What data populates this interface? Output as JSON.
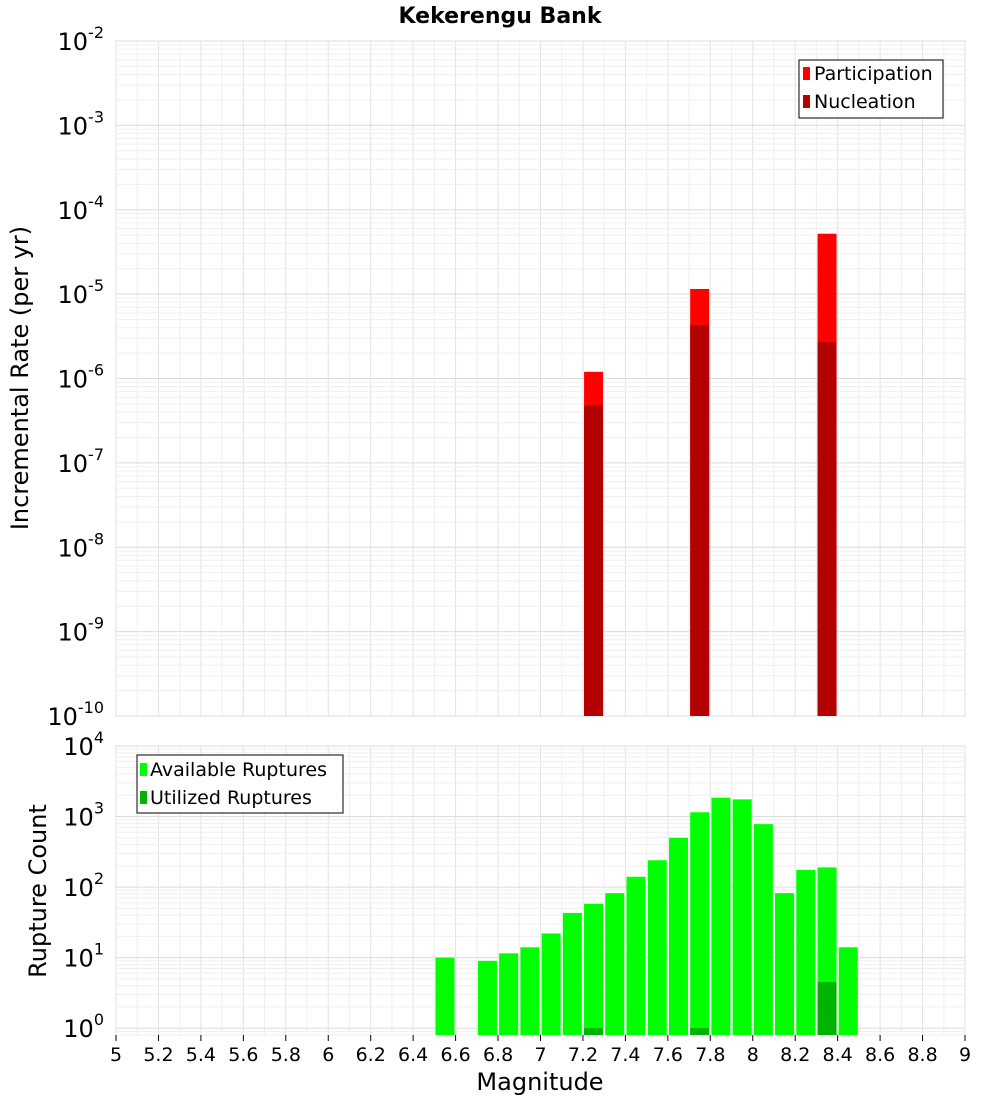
{
  "title": "Kekerengu Bank",
  "chart_data": [
    {
      "type": "bar",
      "ylabel": "Incremental Rate (per yr)",
      "yscale": "log",
      "ylim": [
        1e-10,
        0.01
      ],
      "y_tick_exponents": [
        -10,
        -9,
        -8,
        -7,
        -6,
        -5,
        -4,
        -3,
        -2
      ],
      "xlim": [
        5,
        9
      ],
      "grid": true,
      "legend_position": "top-right",
      "series": [
        {
          "name": "Participation",
          "color": "#ff0000",
          "points": [
            {
              "x": 7.25,
              "y": 1.2e-06
            },
            {
              "x": 7.75,
              "y": 1.15e-05
            },
            {
              "x": 8.35,
              "y": 5.2e-05
            }
          ]
        },
        {
          "name": "Nucleation",
          "color": "#b30000",
          "points": [
            {
              "x": 7.25,
              "y": 4.8e-07
            },
            {
              "x": 7.75,
              "y": 4.3e-06
            },
            {
              "x": 8.35,
              "y": 2.7e-06
            }
          ]
        }
      ]
    },
    {
      "type": "bar",
      "ylabel": "Rupture Count",
      "xlabel": "Magnitude",
      "yscale": "log",
      "ylim": [
        0.8,
        10000
      ],
      "y_tick_exponents": [
        0,
        1,
        2,
        3,
        4
      ],
      "xlim": [
        5,
        9
      ],
      "x_ticks": [
        "5",
        "5.2",
        "5.4",
        "5.6",
        "5.8",
        "6",
        "6.2",
        "6.4",
        "6.6",
        "6.8",
        "7",
        "7.2",
        "7.4",
        "7.6",
        "7.8",
        "8",
        "8.2",
        "8.4",
        "8.6",
        "8.8",
        "9"
      ],
      "grid": true,
      "legend_position": "top-left",
      "series": [
        {
          "name": "Available Ruptures",
          "color": "#00ff00",
          "points": [
            {
              "x": 6.55,
              "y": 10
            },
            {
              "x": 6.75,
              "y": 9
            },
            {
              "x": 6.85,
              "y": 11.5
            },
            {
              "x": 6.95,
              "y": 14
            },
            {
              "x": 7.05,
              "y": 22
            },
            {
              "x": 7.15,
              "y": 43
            },
            {
              "x": 7.25,
              "y": 58
            },
            {
              "x": 7.35,
              "y": 82
            },
            {
              "x": 7.45,
              "y": 140
            },
            {
              "x": 7.55,
              "y": 240
            },
            {
              "x": 7.65,
              "y": 500
            },
            {
              "x": 7.75,
              "y": 1150
            },
            {
              "x": 7.85,
              "y": 1850
            },
            {
              "x": 7.95,
              "y": 1750
            },
            {
              "x": 8.05,
              "y": 780
            },
            {
              "x": 8.15,
              "y": 82
            },
            {
              "x": 8.25,
              "y": 175
            },
            {
              "x": 8.35,
              "y": 190
            },
            {
              "x": 8.45,
              "y": 14
            }
          ]
        },
        {
          "name": "Utilized Ruptures",
          "color": "#00b300",
          "points": [
            {
              "x": 7.25,
              "y": 1
            },
            {
              "x": 7.75,
              "y": 1
            },
            {
              "x": 8.35,
              "y": 4.5
            }
          ]
        }
      ]
    }
  ]
}
